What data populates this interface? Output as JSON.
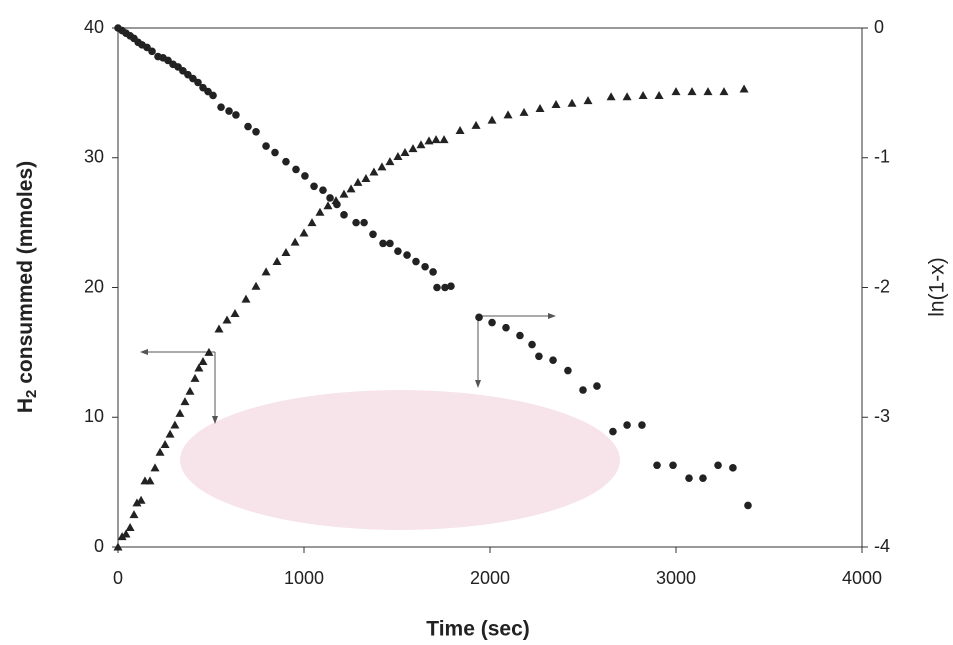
{
  "chart_data": {
    "type": "scatter",
    "x_label": "Time (sec)",
    "y_label": {
      "main": "H",
      "sub": "2",
      "rest": " consummed (mmoles)"
    },
    "y2_label": "ln(1-x)",
    "xlim": [
      0,
      4000
    ],
    "xticks": [
      0,
      1000,
      2000,
      3000,
      4000
    ],
    "ylim": [
      0,
      40
    ],
    "yticks": [
      0,
      10,
      20,
      30,
      40
    ],
    "y2lim": [
      -4,
      0
    ],
    "y2ticks": [
      -4,
      -3,
      -2,
      -1,
      0
    ],
    "series": [
      {
        "marker": "triangle",
        "color": "#222222",
        "x": [
          0,
          22,
          43,
          65,
          86,
          102,
          124,
          145,
          172,
          199,
          226,
          253,
          280,
          306,
          333,
          360,
          387,
          414,
          435,
          457,
          489,
          543,
          586,
          629,
          688,
          742,
          796,
          855,
          903,
          952,
          1000,
          1043,
          1086,
          1129,
          1172,
          1215,
          1253,
          1290,
          1333,
          1376,
          1419,
          1462,
          1505,
          1543,
          1586,
          1629,
          1672,
          1710,
          1753,
          1839,
          1925,
          2011,
          2097,
          2183,
          2269,
          2355,
          2441,
          2527,
          2651,
          2737,
          2823,
          2909,
          3000,
          3086,
          3172,
          3258,
          3366
        ],
        "values": [
          0,
          0.8,
          1.0,
          1.5,
          2.5,
          3.4,
          3.6,
          5.1,
          5.1,
          6.1,
          7.3,
          7.9,
          8.7,
          9.4,
          10.3,
          11.2,
          12.0,
          13.0,
          13.8,
          14.3,
          15.0,
          16.8,
          17.5,
          18.0,
          19.1,
          20.1,
          21.2,
          22.0,
          22.7,
          23.5,
          24.2,
          25.0,
          25.8,
          26.3,
          26.7,
          27.2,
          27.6,
          28.1,
          28.4,
          28.9,
          29.3,
          29.7,
          30.1,
          30.4,
          30.7,
          31.0,
          31.3,
          31.4,
          31.4,
          32.1,
          32.5,
          32.9,
          33.3,
          33.5,
          33.8,
          34.1,
          34.2,
          34.4,
          34.7,
          34.7,
          34.8,
          34.8,
          35.1,
          35.1,
          35.1,
          35.1,
          35.3
        ]
      },
      {
        "marker": "circle",
        "color": "#222222",
        "axis": "y2",
        "x": [
          0,
          22,
          43,
          65,
          86,
          108,
          129,
          156,
          183,
          215,
          242,
          269,
          296,
          323,
          349,
          376,
          403,
          430,
          457,
          484,
          511,
          554,
          597,
          634,
          699,
          742,
          796,
          844,
          903,
          957,
          1005,
          1054,
          1102,
          1140,
          1177,
          1215,
          1280,
          1323,
          1371,
          1425,
          1462,
          1505,
          1554,
          1602,
          1651,
          1694,
          1715,
          1758,
          1790,
          1941,
          2011,
          2086,
          2161,
          2226,
          2263,
          2339,
          2419,
          2500,
          2575,
          2661,
          2737,
          2817,
          2898,
          2984,
          3070,
          3145,
          3226,
          3306,
          3387
        ],
        "values": [
          0,
          -0.02,
          -0.04,
          -0.06,
          -0.08,
          -0.11,
          -0.13,
          -0.15,
          -0.18,
          -0.22,
          -0.23,
          -0.25,
          -0.28,
          -0.3,
          -0.33,
          -0.36,
          -0.39,
          -0.42,
          -0.46,
          -0.49,
          -0.52,
          -0.61,
          -0.64,
          -0.67,
          -0.76,
          -0.8,
          -0.91,
          -0.96,
          -1.03,
          -1.09,
          -1.14,
          -1.22,
          -1.25,
          -1.31,
          -1.36,
          -1.44,
          -1.5,
          -1.5,
          -1.59,
          -1.66,
          -1.66,
          -1.72,
          -1.75,
          -1.8,
          -1.84,
          -1.88,
          -2.0,
          -2.0,
          -1.99,
          -2.23,
          -2.27,
          -2.31,
          -2.37,
          -2.44,
          -2.53,
          -2.56,
          -2.64,
          -2.79,
          -2.76,
          -3.11,
          -3.06,
          -3.06,
          -3.37,
          -3.37,
          -3.47,
          -3.47,
          -3.37,
          -3.39,
          -3.68
        ]
      }
    ]
  }
}
